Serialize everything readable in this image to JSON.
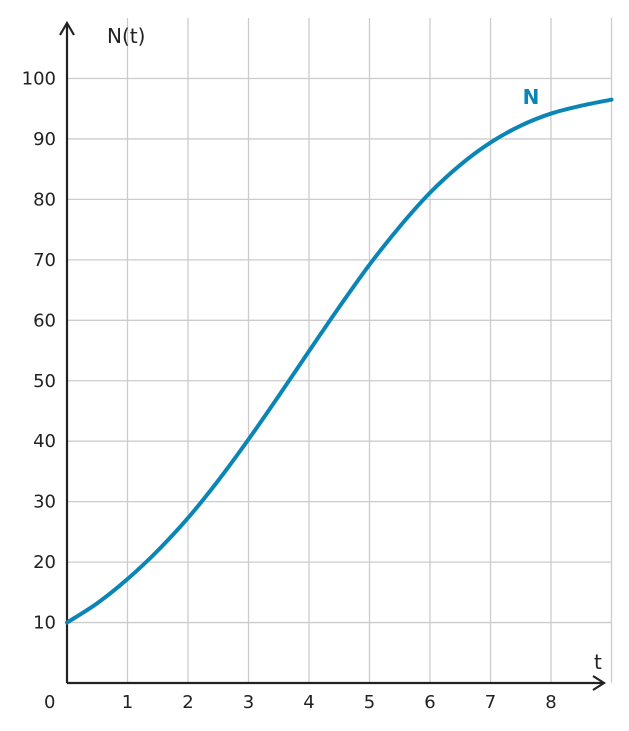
{
  "chart_data": {
    "type": "line",
    "xlabel": "t",
    "ylabel": "N(t)",
    "origin_label": "0",
    "xlim": [
      0,
      9
    ],
    "ylim": [
      0,
      110
    ],
    "x_ticks": [
      1,
      2,
      3,
      4,
      5,
      6,
      7,
      8
    ],
    "y_ticks": [
      10,
      20,
      30,
      40,
      50,
      60,
      70,
      80,
      90,
      100
    ],
    "grid": true,
    "colors": {
      "series": "#0a85b5",
      "grid": "#cccccc",
      "axis": "#222222"
    },
    "series": [
      {
        "name": "N",
        "x": [
          0,
          0.5,
          1,
          1.5,
          2,
          2.5,
          3,
          3.5,
          4,
          4.5,
          5,
          5.5,
          6,
          6.5,
          7,
          7.5,
          8,
          8.5,
          9
        ],
        "y": [
          10,
          13.2,
          17.2,
          21.9,
          27.3,
          33.5,
          40.3,
          47.5,
          54.9,
          62.2,
          69.2,
          75.5,
          81.1,
          85.7,
          89.4,
          92.2,
          94.2,
          95.5,
          96.5
        ]
      }
    ]
  }
}
